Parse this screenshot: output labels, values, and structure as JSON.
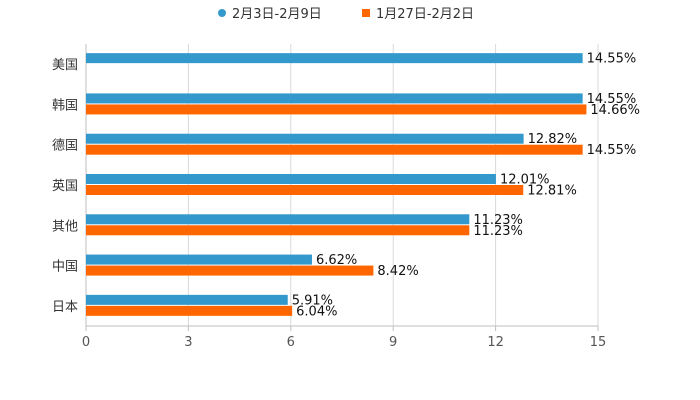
{
  "chart_data": {
    "type": "bar",
    "orientation": "horizontal",
    "categories": [
      "美国",
      "韩国",
      "德国",
      "英国",
      "其他",
      "中国",
      "日本"
    ],
    "series": [
      {
        "name": "2月3日-2月9日",
        "color": "#3399cc",
        "values": [
          14.55,
          14.55,
          12.82,
          12.01,
          11.23,
          6.62,
          5.91
        ],
        "labels": [
          "14.55%",
          "14.55%",
          "12.82%",
          "12.01%",
          "11.23%",
          "6.62%",
          "5.91%"
        ]
      },
      {
        "name": "1月27日-2月2日",
        "color": "#ff6600",
        "values": [
          null,
          14.66,
          14.55,
          12.81,
          11.23,
          8.42,
          6.04
        ],
        "labels": [
          "",
          "14.66%",
          "14.55%",
          "12.81%",
          "11.23%",
          "8.42%",
          "6.04%"
        ]
      }
    ],
    "xlim": [
      0,
      15
    ],
    "xticks": [
      0,
      3,
      6,
      9,
      12,
      15
    ],
    "xtick_labels": [
      "0",
      "3",
      "6",
      "9",
      "12",
      "15"
    ],
    "legend_position": "top-center",
    "grid": "vertical"
  }
}
